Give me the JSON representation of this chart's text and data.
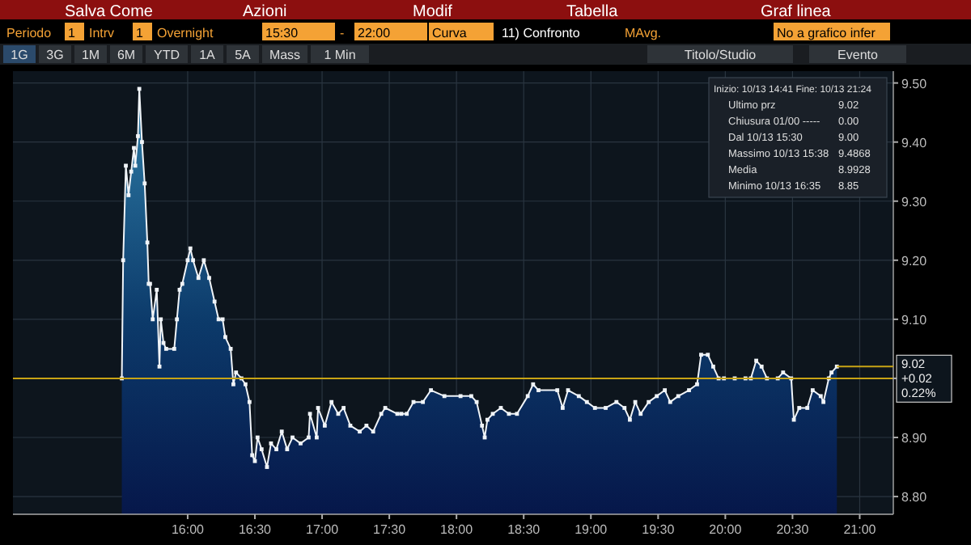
{
  "chart_data": {
    "type": "area",
    "x": [
      15.51,
      15.52,
      15.54,
      15.56,
      15.58,
      15.6,
      15.61,
      15.63,
      15.64,
      15.66,
      15.68,
      15.7,
      15.71,
      15.72,
      15.74,
      15.77,
      15.79,
      15.8,
      15.82,
      15.84,
      15.9,
      15.92,
      15.94,
      15.96,
      16.0,
      16.02,
      16.04,
      16.08,
      16.12,
      16.16,
      16.2,
      16.23,
      16.26,
      16.28,
      16.32,
      16.34,
      16.36,
      16.4,
      16.43,
      16.46,
      16.48,
      16.5,
      16.52,
      16.55,
      16.59,
      16.62,
      16.66,
      16.7,
      16.74,
      16.78,
      16.84,
      16.9,
      16.91,
      16.96,
      16.97,
      17.02,
      17.07,
      17.12,
      17.16,
      17.21,
      17.28,
      17.33,
      17.38,
      17.44,
      17.47,
      17.56,
      17.59,
      17.63,
      17.68,
      17.75,
      17.81,
      17.91,
      18.03,
      18.11,
      18.15,
      18.19,
      18.21,
      18.23,
      18.27,
      18.33,
      18.39,
      18.45,
      18.53,
      18.57,
      18.61,
      18.75,
      18.79,
      18.83,
      18.91,
      18.97,
      19.03,
      19.11,
      19.19,
      19.25,
      19.29,
      19.33,
      19.37,
      19.43,
      19.49,
      19.55,
      19.59,
      19.65,
      19.73,
      19.79,
      19.82,
      19.87,
      19.91,
      19.95,
      19.99,
      20.07,
      20.15,
      20.19,
      20.23,
      20.27,
      20.31,
      20.39,
      20.43,
      20.49,
      20.51,
      20.55,
      20.61,
      20.65,
      20.71,
      20.73,
      20.77,
      20.79,
      20.83
    ],
    "series": [
      {
        "color": "#f0f4f8",
        "values": [
          9.0,
          9.2,
          9.36,
          9.31,
          9.35,
          9.39,
          9.36,
          9.41,
          9.49,
          9.4,
          9.33,
          9.23,
          9.16,
          9.16,
          9.1,
          9.15,
          9.02,
          9.1,
          9.06,
          9.05,
          9.05,
          9.1,
          9.15,
          9.16,
          9.2,
          9.22,
          9.2,
          9.17,
          9.2,
          9.17,
          9.13,
          9.1,
          9.1,
          9.07,
          9.05,
          8.99,
          9.01,
          9.0,
          8.99,
          8.96,
          8.87,
          8.86,
          8.9,
          8.88,
          8.85,
          8.89,
          8.88,
          8.91,
          8.88,
          8.9,
          8.89,
          8.9,
          8.94,
          8.9,
          8.95,
          8.92,
          8.96,
          8.94,
          8.95,
          8.92,
          8.91,
          8.92,
          8.91,
          8.94,
          8.95,
          8.94,
          8.94,
          8.94,
          8.96,
          8.96,
          8.98,
          8.97,
          8.97,
          8.97,
          8.96,
          8.92,
          8.9,
          8.93,
          8.94,
          8.95,
          8.94,
          8.94,
          8.97,
          8.99,
          8.98,
          8.98,
          8.95,
          8.98,
          8.97,
          8.96,
          8.95,
          8.95,
          8.96,
          8.95,
          8.93,
          8.96,
          8.94,
          8.96,
          8.97,
          8.98,
          8.96,
          8.97,
          8.98,
          8.99,
          9.04,
          9.04,
          9.02,
          9.0,
          9.0,
          9.0,
          9.0,
          9.0,
          9.03,
          9.02,
          9.0,
          9.0,
          9.01,
          9.0,
          8.93,
          8.95,
          8.95,
          8.98,
          8.97,
          8.96,
          9.0,
          9.01,
          9.02
        ]
      }
    ],
    "xlim": [
      14.7,
      21.25
    ],
    "ylim": [
      8.77,
      9.52
    ],
    "xticks": [
      {
        "value": 16,
        "label": "16:00"
      },
      {
        "value": 16.5,
        "label": "16:30"
      },
      {
        "value": 17,
        "label": "17:00"
      },
      {
        "value": 17.5,
        "label": "17:30"
      },
      {
        "value": 18,
        "label": "18:00"
      },
      {
        "value": 18.5,
        "label": "18:30"
      },
      {
        "value": 19,
        "label": "19:00"
      },
      {
        "value": 19.5,
        "label": "19:30"
      },
      {
        "value": 20,
        "label": "20:00"
      },
      {
        "value": 20.5,
        "label": "20:30"
      },
      {
        "value": 21,
        "label": "21:00"
      }
    ],
    "yticks": [
      {
        "value": 8.8,
        "label": "8.80"
      },
      {
        "value": 8.9,
        "label": "8.90"
      },
      {
        "value": 9,
        "label": null
      },
      {
        "value": 9.1,
        "label": "9.10"
      },
      {
        "value": 9.2,
        "label": "9.20"
      },
      {
        "value": 9.3,
        "label": "9.30"
      },
      {
        "value": 9.4,
        "label": "9.40"
      },
      {
        "value": 9.5,
        "label": "9.50"
      }
    ],
    "grid": true,
    "marker": "square",
    "ref_lines": [
      {
        "axis": "y",
        "value": 9.0,
        "color": "#c8a415"
      }
    ],
    "annotations": [
      "Salva Come",
      "Azioni",
      "Modif",
      "Tabella",
      "Graf linea",
      "Periodo",
      "1",
      "Intrv",
      "1",
      "Overnight",
      "15:30",
      "-",
      "22:00",
      "Curva",
      "11) Confronto",
      "MAvg.",
      "No a grafico infer",
      "1G",
      "3G",
      "1M",
      "6M",
      "YTD",
      "1A",
      "5A",
      "Mass",
      "1 Min",
      "Titolo/Studio",
      "Evento",
      "Inizio: 10/13 14:41 Fine: 10/13 21:24",
      "Ultimo prz",
      "9.02",
      "Chiusura 01/00 -----",
      "0.00",
      "Dal 10/13 15:30",
      "9.00",
      "Massimo 10/13 15:38",
      "9.4868",
      "Media",
      "8.9928",
      "Minimo 10/13 16:35",
      "8.85",
      "9.02",
      "+0.02",
      "0.22%"
    ]
  }
}
